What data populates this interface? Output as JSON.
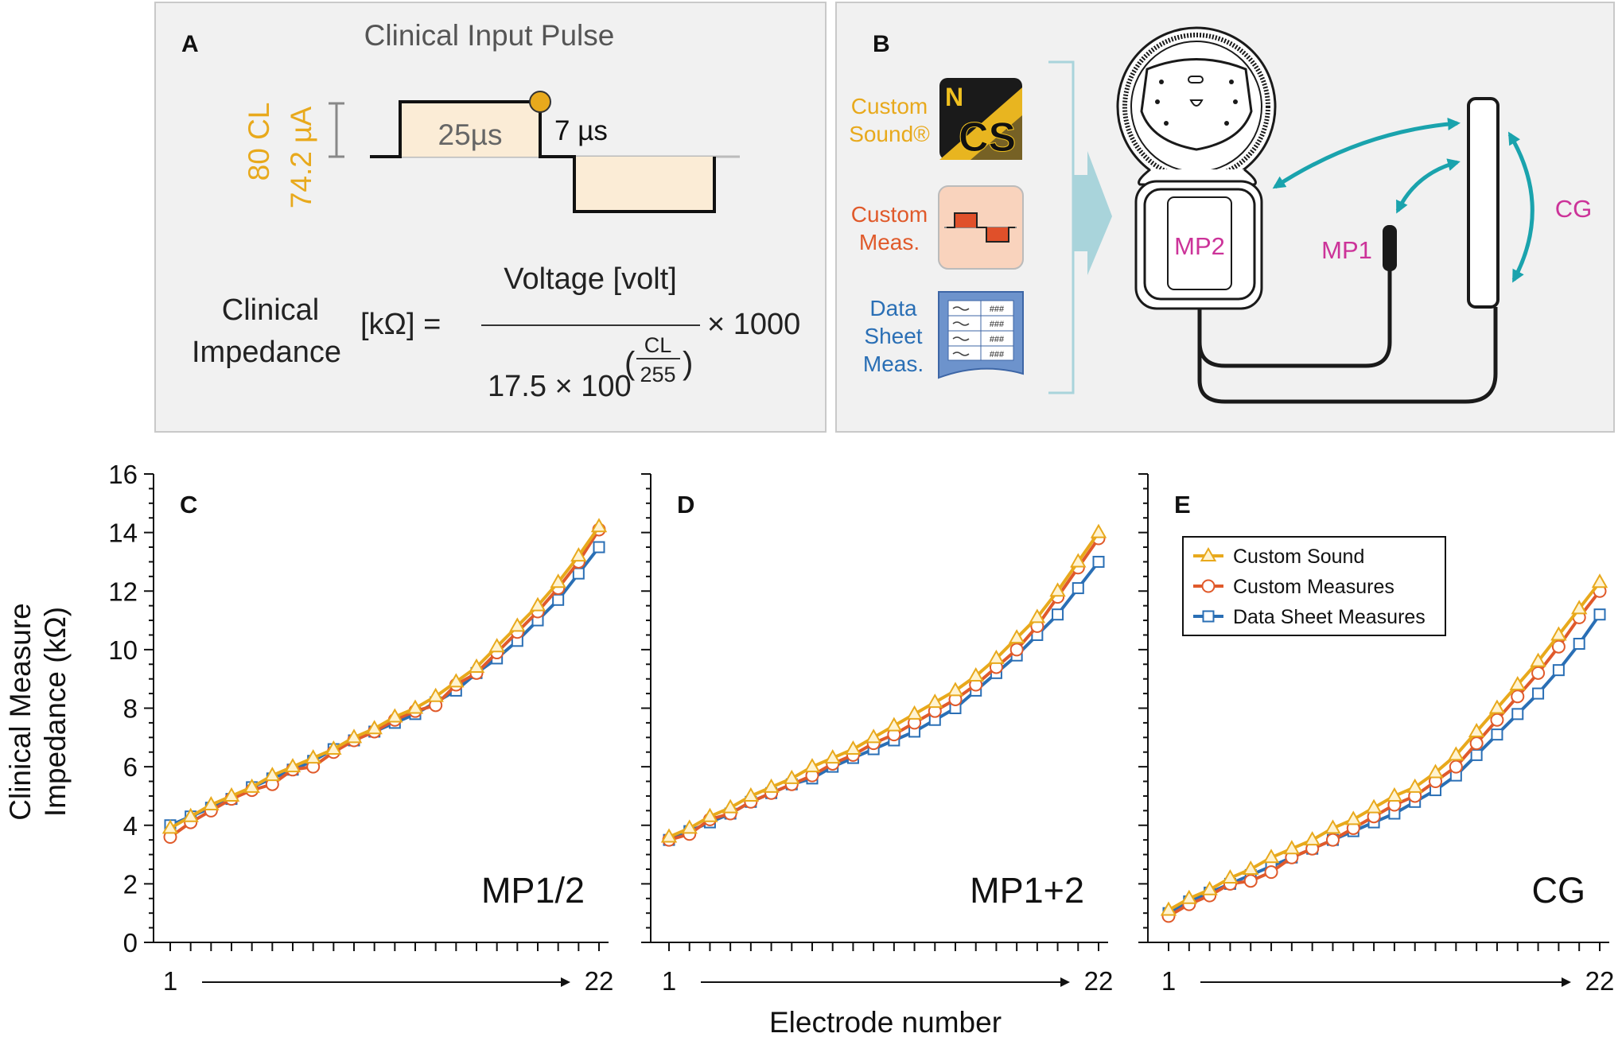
{
  "panel_a": {
    "letter": "A",
    "title": "Clinical Input Pulse",
    "cl_label": "80 CL",
    "ua_label": "74.2 µA",
    "phase_width": "25µs",
    "gap": "7 µs",
    "formula_lhs_line1": "Clinical",
    "formula_lhs_line2": "Impedance",
    "formula_unit": "[kΩ] =",
    "numerator": "Voltage [volt]",
    "times_1000": "× 1000",
    "denom_base": "17.5 × 100",
    "denom_cl": "CL",
    "denom_255": "255",
    "colors": {
      "accent": "#e8a91c",
      "pulse_fill": "#fbecd6",
      "text": "#222222",
      "title": "#555555"
    }
  },
  "panel_b": {
    "letter": "B",
    "software": [
      {
        "label_line1": "Custom",
        "label_line2": "Sound®",
        "color": "#e8a91c",
        "icon": "custom-sound-icon",
        "icon_text_n": "N",
        "icon_text_cs": "CS"
      },
      {
        "label_line1": "Custom",
        "label_line2": "Meas.",
        "color": "#e05a2b",
        "icon": "pulse-icon"
      },
      {
        "label_line1": "Data",
        "label_line2": "Sheet",
        "label_line3": "Meas.",
        "color": "#2a6fb5",
        "icon": "data-sheet-icon",
        "icon_text": "###"
      }
    ],
    "electrodes": {
      "mp2": "MP2",
      "mp1": "MP1",
      "cg": "CG",
      "color": "#cc3399"
    },
    "arrow_color": "#1aa3ad"
  },
  "chart_data": [
    {
      "type": "line",
      "panel": "C",
      "annotation": "MP1/2",
      "x": [
        1,
        2,
        3,
        4,
        5,
        6,
        7,
        8,
        9,
        10,
        11,
        12,
        13,
        14,
        15,
        16,
        17,
        18,
        19,
        20,
        21,
        22
      ],
      "series": [
        {
          "name": "Custom Sound",
          "marker": "triangle",
          "color": "#e8a91c",
          "values": [
            3.9,
            4.3,
            4.7,
            5.0,
            5.3,
            5.7,
            6.0,
            6.3,
            6.6,
            7.0,
            7.3,
            7.7,
            8.0,
            8.4,
            8.9,
            9.4,
            10.1,
            10.8,
            11.5,
            12.3,
            13.2,
            14.2
          ]
        },
        {
          "name": "Custom Measures",
          "marker": "circle",
          "color": "#e05a2b",
          "values": [
            3.6,
            4.1,
            4.5,
            4.9,
            5.2,
            5.4,
            5.9,
            6.0,
            6.5,
            6.9,
            7.2,
            7.6,
            7.9,
            8.1,
            8.8,
            9.2,
            9.9,
            10.6,
            11.3,
            12.1,
            13.0,
            14.1
          ]
        },
        {
          "name": "Data Sheet Measures",
          "marker": "square",
          "color": "#2a6fb5",
          "values": [
            4.0,
            4.3,
            4.6,
            4.9,
            5.3,
            5.6,
            5.9,
            6.2,
            6.6,
            6.9,
            7.2,
            7.5,
            7.8,
            8.2,
            8.6,
            9.2,
            9.7,
            10.3,
            11.0,
            11.7,
            12.6,
            13.5
          ]
        }
      ],
      "ylim": [
        0,
        16
      ]
    },
    {
      "type": "line",
      "panel": "D",
      "annotation": "MP1+2",
      "x": [
        1,
        2,
        3,
        4,
        5,
        6,
        7,
        8,
        9,
        10,
        11,
        12,
        13,
        14,
        15,
        16,
        17,
        18,
        19,
        20,
        21,
        22
      ],
      "series": [
        {
          "name": "Custom Sound",
          "marker": "triangle",
          "color": "#e8a91c",
          "values": [
            3.6,
            3.9,
            4.3,
            4.6,
            5.0,
            5.3,
            5.6,
            6.0,
            6.3,
            6.6,
            7.0,
            7.4,
            7.8,
            8.2,
            8.6,
            9.1,
            9.7,
            10.4,
            11.1,
            12.0,
            13.0,
            14.0
          ]
        },
        {
          "name": "Custom Measures",
          "marker": "circle",
          "color": "#e05a2b",
          "values": [
            3.5,
            3.7,
            4.2,
            4.4,
            4.8,
            5.1,
            5.4,
            5.7,
            6.1,
            6.4,
            6.8,
            7.1,
            7.5,
            7.9,
            8.3,
            8.8,
            9.4,
            10.0,
            10.8,
            11.8,
            12.8,
            13.8
          ]
        },
        {
          "name": "Data Sheet Measures",
          "marker": "square",
          "color": "#2a6fb5",
          "values": [
            3.5,
            3.8,
            4.1,
            4.4,
            4.8,
            5.1,
            5.4,
            5.6,
            6.0,
            6.3,
            6.6,
            6.9,
            7.2,
            7.6,
            8.0,
            8.6,
            9.2,
            9.8,
            10.5,
            11.2,
            12.1,
            13.0
          ]
        }
      ],
      "ylim": [
        0,
        16
      ]
    },
    {
      "type": "line",
      "panel": "E",
      "annotation": "CG",
      "x": [
        1,
        2,
        3,
        4,
        5,
        6,
        7,
        8,
        9,
        10,
        11,
        12,
        13,
        14,
        15,
        16,
        17,
        18,
        19,
        20,
        21,
        22
      ],
      "series": [
        {
          "name": "Custom Sound",
          "marker": "triangle",
          "color": "#e8a91c",
          "values": [
            1.1,
            1.5,
            1.8,
            2.2,
            2.5,
            2.9,
            3.2,
            3.5,
            3.9,
            4.2,
            4.6,
            5.0,
            5.3,
            5.8,
            6.4,
            7.2,
            8.0,
            8.8,
            9.6,
            10.5,
            11.4,
            12.3
          ]
        },
        {
          "name": "Custom Measures",
          "marker": "circle",
          "color": "#e05a2b",
          "values": [
            0.9,
            1.3,
            1.6,
            2.0,
            2.1,
            2.4,
            2.9,
            3.2,
            3.5,
            3.9,
            4.3,
            4.7,
            5.0,
            5.5,
            6.0,
            6.8,
            7.6,
            8.4,
            9.2,
            10.1,
            11.1,
            12.0
          ]
        },
        {
          "name": "Data Sheet Measures",
          "marker": "square",
          "color": "#2a6fb5",
          "values": [
            1.0,
            1.4,
            1.7,
            2.0,
            2.3,
            2.6,
            2.9,
            3.2,
            3.5,
            3.8,
            4.1,
            4.4,
            4.8,
            5.2,
            5.7,
            6.4,
            7.1,
            7.8,
            8.5,
            9.3,
            10.2,
            11.2
          ]
        }
      ],
      "ylim": [
        0,
        16
      ]
    }
  ],
  "charts_common": {
    "ylabel_line1": "Clinical Measure",
    "ylabel_line2": "Impedance (kΩ)",
    "xlabel": "Electrode number",
    "x_start_label": "1",
    "x_end_label": "22",
    "yticks": [
      "0",
      "2",
      "4",
      "6",
      "8",
      "10",
      "12",
      "14",
      "16"
    ],
    "legend": {
      "entries": [
        "Custom Sound",
        "Custom Measures",
        "Data Sheet Measures"
      ],
      "placement": "top-right of panel E"
    }
  }
}
